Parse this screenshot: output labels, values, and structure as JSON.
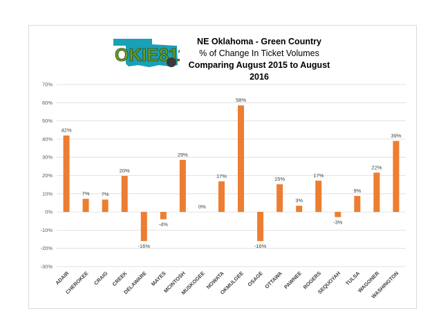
{
  "logo": {
    "text": "OKIE811",
    "colors": {
      "green": "#6a9a2a",
      "teal": "#1aa0b8",
      "dark": "#3a3a3a"
    }
  },
  "chart_data": {
    "type": "bar",
    "title": "NE Oklahoma - Green Country",
    "subtitle": "% of Change In Ticket Volumes",
    "subtitle2": "Comparing August 2015 to August 2016",
    "categories": [
      "ADAIR",
      "CHEROKEE",
      "CRAIG",
      "CREEK",
      "DELAWARE",
      "MAYES",
      "MCINTOSH",
      "MUSKOGEE",
      "NOWATA",
      "OKMULGEE",
      "OSAGE",
      "OTTAWA",
      "PAWNEE",
      "ROGERS",
      "SEQUOYAH",
      "TULSA",
      "WAGONER",
      "WASHINGTON"
    ],
    "values": [
      42,
      7.2,
      6.8,
      19.8,
      -16,
      -4,
      28.6,
      0,
      16.8,
      58.5,
      -16,
      15.2,
      3.4,
      17.2,
      -2.8,
      8.8,
      21.6,
      39
    ],
    "data_labels": [
      "42%",
      "7%",
      "7%",
      "20%",
      "-16%",
      "-4%",
      "29%",
      "0%",
      "17%",
      "58%",
      "-16%",
      "15%",
      "3%",
      "17%",
      "-3%",
      "9%",
      "22%",
      "39%"
    ],
    "y_ticks": [
      "70%",
      "60%",
      "50%",
      "40%",
      "30%",
      "20%",
      "10%",
      "0%",
      "-10%",
      "-20%",
      "-30%"
    ],
    "ylim": [
      -30,
      70
    ],
    "grid": true,
    "bar_color": "#ed7d31"
  }
}
